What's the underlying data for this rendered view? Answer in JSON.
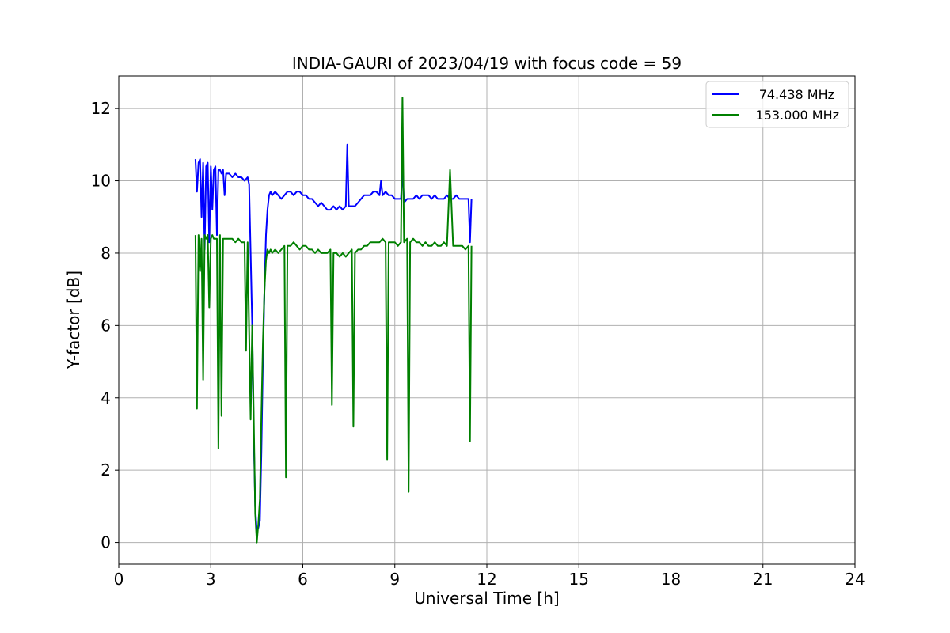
{
  "chart_data": {
    "type": "line",
    "title": "INDIA-GAURI of 2023/04/19 with focus code = 59",
    "xlabel": "Universal Time [h]",
    "ylabel": "Y-factor [dB]",
    "xlim": [
      0,
      24
    ],
    "ylim": [
      -0.6,
      12.9
    ],
    "xticks": [
      0,
      3,
      6,
      9,
      12,
      15,
      18,
      21,
      24
    ],
    "yticks": [
      0,
      2,
      4,
      6,
      8,
      10,
      12
    ],
    "grid": true,
    "legend_position": "top-right",
    "series": [
      {
        "name": "74.438 MHz",
        "color": "#0000ff",
        "x": [
          2.5,
          2.55,
          2.6,
          2.65,
          2.7,
          2.75,
          2.8,
          2.85,
          2.9,
          2.95,
          3.0,
          3.05,
          3.1,
          3.15,
          3.2,
          3.25,
          3.3,
          3.35,
          3.4,
          3.45,
          3.5,
          3.6,
          3.7,
          3.8,
          3.9,
          4.0,
          4.1,
          4.2,
          4.25,
          4.3,
          4.35,
          4.4,
          4.45,
          4.5,
          4.55,
          4.6,
          4.65,
          4.7,
          4.75,
          4.8,
          4.85,
          4.9,
          4.95,
          5.0,
          5.1,
          5.2,
          5.3,
          5.4,
          5.5,
          5.6,
          5.7,
          5.8,
          5.9,
          6.0,
          6.1,
          6.2,
          6.3,
          6.4,
          6.5,
          6.6,
          6.7,
          6.8,
          6.9,
          7.0,
          7.1,
          7.2,
          7.3,
          7.4,
          7.45,
          7.5,
          7.6,
          7.7,
          7.8,
          7.9,
          8.0,
          8.1,
          8.2,
          8.3,
          8.4,
          8.5,
          8.55,
          8.6,
          8.7,
          8.8,
          8.9,
          9.0,
          9.1,
          9.2,
          9.25,
          9.3,
          9.4,
          9.5,
          9.6,
          9.7,
          9.8,
          9.9,
          10.0,
          10.1,
          10.2,
          10.3,
          10.4,
          10.5,
          10.6,
          10.7,
          10.8,
          10.9,
          11.0,
          11.1,
          11.2,
          11.3,
          11.4,
          11.45,
          11.5
        ],
        "y": [
          10.6,
          9.7,
          10.5,
          10.6,
          9.0,
          10.5,
          8.1,
          10.4,
          10.5,
          8.3,
          10.4,
          9.2,
          10.3,
          10.4,
          8.5,
          10.3,
          10.3,
          10.2,
          10.3,
          9.6,
          10.2,
          10.2,
          10.1,
          10.2,
          10.1,
          10.1,
          10.0,
          10.1,
          9.9,
          8.0,
          6.0,
          3.0,
          1.0,
          0.3,
          0.4,
          0.6,
          2.5,
          5.0,
          7.0,
          8.5,
          9.2,
          9.6,
          9.7,
          9.6,
          9.7,
          9.6,
          9.5,
          9.6,
          9.7,
          9.7,
          9.6,
          9.7,
          9.7,
          9.6,
          9.6,
          9.5,
          9.5,
          9.4,
          9.3,
          9.4,
          9.3,
          9.2,
          9.2,
          9.3,
          9.2,
          9.3,
          9.2,
          9.3,
          11.0,
          9.3,
          9.3,
          9.3,
          9.4,
          9.5,
          9.6,
          9.6,
          9.6,
          9.7,
          9.7,
          9.6,
          10.0,
          9.6,
          9.7,
          9.6,
          9.6,
          9.5,
          9.5,
          9.5,
          10.3,
          9.4,
          9.5,
          9.5,
          9.5,
          9.6,
          9.5,
          9.6,
          9.6,
          9.6,
          9.5,
          9.6,
          9.5,
          9.5,
          9.5,
          9.6,
          9.5,
          9.5,
          9.6,
          9.5,
          9.5,
          9.5,
          9.5,
          8.3,
          9.5
        ]
      },
      {
        "name": "153.000 MHz",
        "color": "#008000",
        "x": [
          2.5,
          2.55,
          2.6,
          2.65,
          2.7,
          2.75,
          2.8,
          2.85,
          2.9,
          2.95,
          3.0,
          3.05,
          3.1,
          3.15,
          3.2,
          3.25,
          3.3,
          3.35,
          3.4,
          3.45,
          3.5,
          3.6,
          3.7,
          3.8,
          3.9,
          4.0,
          4.1,
          4.15,
          4.2,
          4.3,
          4.35,
          4.4,
          4.45,
          4.5,
          4.55,
          4.6,
          4.65,
          4.7,
          4.75,
          4.8,
          4.85,
          4.9,
          4.95,
          5.0,
          5.1,
          5.2,
          5.3,
          5.4,
          5.45,
          5.5,
          5.6,
          5.7,
          5.8,
          5.9,
          6.0,
          6.1,
          6.2,
          6.3,
          6.4,
          6.5,
          6.6,
          6.7,
          6.8,
          6.9,
          6.95,
          7.0,
          7.1,
          7.2,
          7.3,
          7.4,
          7.5,
          7.6,
          7.65,
          7.7,
          7.8,
          7.9,
          8.0,
          8.1,
          8.2,
          8.3,
          8.4,
          8.5,
          8.6,
          8.7,
          8.75,
          8.8,
          8.9,
          9.0,
          9.1,
          9.2,
          9.25,
          9.3,
          9.4,
          9.45,
          9.5,
          9.6,
          9.7,
          9.8,
          9.9,
          10.0,
          10.1,
          10.2,
          10.3,
          10.4,
          10.5,
          10.6,
          10.7,
          10.8,
          10.9,
          11.0,
          11.1,
          11.2,
          11.3,
          11.4,
          11.45,
          11.5
        ],
        "y": [
          8.5,
          3.7,
          8.5,
          7.5,
          8.4,
          4.5,
          8.5,
          8.4,
          8.5,
          6.5,
          8.4,
          8.5,
          8.4,
          8.4,
          8.4,
          2.6,
          8.5,
          3.5,
          8.4,
          8.4,
          8.4,
          8.4,
          8.4,
          8.3,
          8.4,
          8.3,
          8.3,
          5.3,
          8.3,
          3.4,
          6.0,
          3.5,
          0.8,
          0.0,
          0.5,
          1.2,
          3.5,
          5.5,
          7.0,
          7.8,
          8.1,
          8.0,
          8.1,
          8.0,
          8.1,
          8.0,
          8.1,
          8.2,
          1.8,
          8.2,
          8.2,
          8.3,
          8.2,
          8.1,
          8.2,
          8.2,
          8.1,
          8.1,
          8.0,
          8.1,
          8.0,
          8.0,
          8.0,
          8.1,
          3.8,
          8.0,
          8.0,
          7.9,
          8.0,
          7.9,
          8.0,
          8.1,
          3.2,
          8.0,
          8.1,
          8.1,
          8.2,
          8.2,
          8.3,
          8.3,
          8.3,
          8.3,
          8.4,
          8.3,
          2.3,
          8.3,
          8.3,
          8.3,
          8.2,
          8.3,
          12.3,
          8.3,
          8.4,
          1.4,
          8.3,
          8.4,
          8.3,
          8.3,
          8.2,
          8.3,
          8.2,
          8.2,
          8.3,
          8.2,
          8.2,
          8.3,
          8.2,
          10.3,
          8.2,
          8.2,
          8.2,
          8.2,
          8.1,
          8.2,
          2.8,
          8.2
        ]
      }
    ]
  }
}
